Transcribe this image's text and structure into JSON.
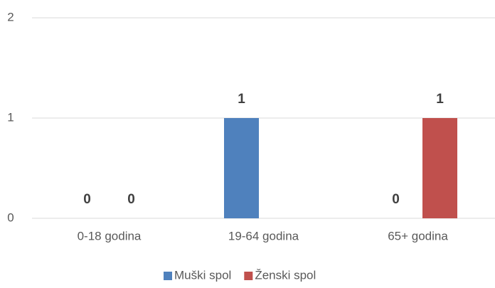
{
  "chart_data": {
    "type": "bar",
    "categories": [
      "0-18 godina",
      "19-64 godina",
      "65+ godina"
    ],
    "series": [
      {
        "name": "Muški spol",
        "color": "#4f81bd",
        "values": [
          0,
          1,
          0
        ]
      },
      {
        "name": "Ženski spol",
        "color": "#c0504d",
        "values": [
          0,
          null,
          1
        ]
      }
    ],
    "ylim": [
      0,
      2
    ],
    "yticks": [
      0,
      1,
      2
    ],
    "grid": true,
    "legend": "bottom"
  }
}
